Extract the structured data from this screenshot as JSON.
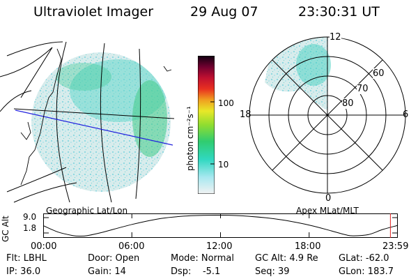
{
  "header": {
    "instrument": "Ultraviolet Imager",
    "date": "29 Aug 07",
    "time": "23:30:31  UT"
  },
  "colorbar": {
    "label": "photon cm⁻²s⁻¹",
    "ticks": [
      "100",
      "10"
    ],
    "scale": "log",
    "tick_values": [
      100,
      10
    ],
    "range": [
      2,
      600
    ]
  },
  "geo_panel": {
    "caption": "Geographic Lat/Lon"
  },
  "polar_panel": {
    "caption": "Apex  MLat/MLT",
    "mlt_labels": {
      "top": "12",
      "left": "18",
      "right": "6",
      "bottom": "0"
    },
    "lat_labels": [
      "60",
      "70",
      "80"
    ]
  },
  "altitude_plot": {
    "ylabel": "GC Alt",
    "ytick_top": "9.0",
    "ytick_bottom": "1.8",
    "xticks": [
      "00:00",
      "06:00",
      "12:00",
      "18:00",
      "23:59"
    ],
    "marker_color": "#e02020"
  },
  "chart_data": {
    "type": "line",
    "title": "GC Alt",
    "xlabel": "",
    "ylabel": "GC Alt",
    "x_hours": [
      0,
      1,
      2,
      2.5,
      3,
      4,
      6,
      8,
      10,
      12,
      14,
      16,
      18,
      19.5,
      20.5,
      21,
      22,
      23,
      24
    ],
    "values": [
      5.4,
      3.2,
      2.0,
      1.8,
      2.0,
      3.1,
      5.8,
      7.9,
      8.8,
      9.0,
      8.6,
      7.5,
      5.6,
      3.6,
      2.2,
      1.9,
      2.3,
      4.1,
      5.5
    ],
    "ylim": [
      1.2,
      9.6
    ],
    "xlim": [
      0,
      24
    ],
    "marker_hour": 23.5
  },
  "info": {
    "flt": "Flt: LBHL",
    "ip": "IP: 36.0",
    "door": "Door: Open",
    "gain": "Gain: 14",
    "mode": "Mode: Normal",
    "dsp": "Dsp:    -5.1",
    "gcalt": "GC Alt: 4.9 Re",
    "seq": "Seq: 39",
    "glat": "GLat: -62.0",
    "glon": "GLon: 183.7"
  }
}
